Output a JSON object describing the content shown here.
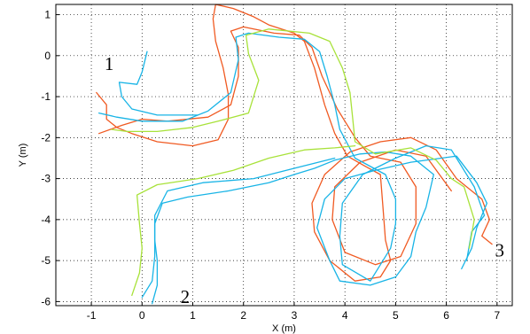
{
  "chart_data": {
    "type": "line",
    "title": "",
    "xlabel": "X (m)",
    "ylabel": "Y (m)",
    "xlim": [
      -1.7,
      7.3
    ],
    "ylim": [
      -6.1,
      1.25
    ],
    "xticks": [
      -1,
      0,
      1,
      2,
      3,
      4,
      5,
      6,
      7
    ],
    "yticks": [
      1,
      0,
      -1,
      -2,
      -3,
      -4,
      -5,
      -6
    ],
    "grid": true,
    "annotations": [
      {
        "text": "1",
        "x": -0.65,
        "y": -0.2
      },
      {
        "text": "2",
        "x": 0.85,
        "y": -5.88
      },
      {
        "text": "3",
        "x": 7.05,
        "y": -4.75
      }
    ],
    "series": [
      {
        "color": "#f05a22",
        "points": [
          [
            -0.9,
            -0.9
          ],
          [
            -0.7,
            -1.2
          ],
          [
            -0.7,
            -1.55
          ],
          [
            -0.5,
            -1.75
          ],
          [
            -0.2,
            -1.9
          ],
          [
            0.3,
            -2.1
          ],
          [
            1.0,
            -2.2
          ],
          [
            1.5,
            -2.05
          ],
          [
            1.7,
            -1.55
          ],
          [
            1.7,
            -0.95
          ],
          [
            1.6,
            -0.3
          ],
          [
            1.45,
            0.35
          ],
          [
            1.4,
            0.9
          ],
          [
            1.45,
            1.25
          ],
          [
            1.8,
            1.15
          ],
          [
            2.2,
            0.95
          ],
          [
            2.5,
            0.75
          ],
          [
            3.0,
            0.55
          ],
          [
            3.2,
            0.35
          ],
          [
            3.4,
            -0.3
          ],
          [
            3.6,
            -1.2
          ],
          [
            3.8,
            -1.9
          ],
          [
            4.05,
            -2.45
          ],
          [
            4.4,
            -2.7
          ],
          [
            4.7,
            -2.9
          ],
          [
            4.75,
            -3.7
          ],
          [
            4.8,
            -4.5
          ],
          [
            4.9,
            -5.0
          ],
          [
            4.7,
            -5.4
          ],
          [
            4.2,
            -5.5
          ],
          [
            3.7,
            -5.0
          ],
          [
            3.4,
            -4.3
          ],
          [
            3.35,
            -3.6
          ],
          [
            3.6,
            -2.9
          ],
          [
            4.1,
            -2.35
          ],
          [
            4.7,
            -2.1
          ],
          [
            5.3,
            -2.0
          ],
          [
            5.8,
            -2.3
          ],
          [
            6.2,
            -3.0
          ],
          [
            6.7,
            -3.5
          ],
          [
            6.85,
            -4.0
          ],
          [
            6.7,
            -4.4
          ],
          [
            6.9,
            -4.6
          ]
        ]
      },
      {
        "color": "#f05a22",
        "points": [
          [
            -0.85,
            -1.9
          ],
          [
            -0.4,
            -1.7
          ],
          [
            0.0,
            -1.55
          ],
          [
            0.5,
            -1.6
          ],
          [
            1.3,
            -1.5
          ],
          [
            1.75,
            -1.2
          ],
          [
            1.9,
            -0.5
          ],
          [
            1.9,
            0.2
          ],
          [
            1.75,
            0.6
          ],
          [
            2.0,
            0.7
          ],
          [
            2.6,
            0.55
          ],
          [
            3.1,
            0.5
          ],
          [
            3.35,
            0.2
          ],
          [
            3.55,
            -0.5
          ],
          [
            3.85,
            -1.3
          ],
          [
            4.2,
            -2.0
          ],
          [
            4.5,
            -2.45
          ],
          [
            5.1,
            -2.6
          ],
          [
            5.4,
            -3.2
          ],
          [
            5.4,
            -4.1
          ],
          [
            5.1,
            -4.9
          ],
          [
            4.6,
            -5.1
          ],
          [
            4.0,
            -4.8
          ],
          [
            3.75,
            -4.0
          ],
          [
            3.8,
            -3.2
          ],
          [
            4.3,
            -2.6
          ],
          [
            5.0,
            -2.3
          ],
          [
            5.6,
            -2.45
          ],
          [
            6.1,
            -3.3
          ]
        ]
      },
      {
        "color": "#18b4e6",
        "points": [
          [
            -0.85,
            -1.4
          ],
          [
            -0.5,
            -1.5
          ],
          [
            0.0,
            -1.6
          ],
          [
            0.8,
            -1.6
          ],
          [
            1.3,
            -1.35
          ],
          [
            1.75,
            -0.9
          ],
          [
            1.9,
            -0.1
          ],
          [
            1.85,
            0.45
          ],
          [
            2.1,
            0.55
          ],
          [
            2.7,
            0.45
          ],
          [
            3.2,
            0.4
          ],
          [
            3.5,
            0.1
          ],
          [
            3.65,
            -0.5
          ],
          [
            3.8,
            -1.2
          ],
          [
            3.9,
            -1.8
          ],
          [
            4.2,
            -2.5
          ],
          [
            4.8,
            -2.9
          ],
          [
            5.0,
            -3.5
          ],
          [
            5.0,
            -4.1
          ],
          [
            4.9,
            -4.7
          ],
          [
            4.5,
            -5.5
          ],
          [
            3.95,
            -5.1
          ],
          [
            3.9,
            -4.4
          ],
          [
            3.95,
            -3.6
          ],
          [
            4.35,
            -2.9
          ],
          [
            5.0,
            -2.5
          ],
          [
            5.6,
            -2.2
          ],
          [
            6.1,
            -2.3
          ],
          [
            6.55,
            -3.2
          ],
          [
            6.75,
            -3.9
          ],
          [
            6.5,
            -4.3
          ],
          [
            6.4,
            -5.0
          ]
        ]
      },
      {
        "color": "#18b4e6",
        "points": [
          [
            0.0,
            -5.9
          ],
          [
            0.2,
            -5.5
          ],
          [
            0.25,
            -4.9
          ],
          [
            0.25,
            -4.1
          ],
          [
            0.4,
            -3.6
          ],
          [
            0.9,
            -3.45
          ],
          [
            1.7,
            -3.3
          ],
          [
            2.5,
            -3.1
          ],
          [
            3.0,
            -2.9
          ],
          [
            3.4,
            -2.75
          ],
          [
            3.8,
            -2.55
          ],
          [
            4.3,
            -2.4
          ],
          [
            4.8,
            -2.35
          ],
          [
            5.3,
            -2.45
          ],
          [
            5.75,
            -2.9
          ],
          [
            5.6,
            -3.7
          ],
          [
            5.4,
            -4.3
          ],
          [
            5.3,
            -4.9
          ],
          [
            5.0,
            -5.4
          ],
          [
            4.5,
            -5.6
          ],
          [
            3.9,
            -5.5
          ],
          [
            3.7,
            -5.0
          ],
          [
            3.45,
            -4.2
          ],
          [
            3.6,
            -3.5
          ],
          [
            4.0,
            -3.0
          ],
          [
            4.6,
            -2.8
          ],
          [
            5.3,
            -2.6
          ],
          [
            6.2,
            -2.45
          ],
          [
            6.6,
            -3.1
          ],
          [
            6.8,
            -3.6
          ],
          [
            6.6,
            -4.2
          ],
          [
            6.5,
            -4.7
          ],
          [
            6.3,
            -5.2
          ]
        ]
      },
      {
        "color": "#18b4e6",
        "points": [
          [
            0.1,
            0.1
          ],
          [
            0.0,
            -0.4
          ],
          [
            -0.1,
            -0.7
          ],
          [
            -0.45,
            -0.65
          ],
          [
            -0.4,
            -1.0
          ],
          [
            -0.2,
            -1.3
          ],
          [
            0.3,
            -1.45
          ],
          [
            1.1,
            -1.45
          ]
        ]
      },
      {
        "color": "#18b4e6",
        "points": [
          [
            0.2,
            -6.05
          ],
          [
            0.3,
            -5.6
          ],
          [
            0.3,
            -5.0
          ],
          [
            0.25,
            -4.5
          ],
          [
            0.25,
            -3.9
          ],
          [
            0.5,
            -3.3
          ],
          [
            1.2,
            -3.1
          ],
          [
            2.2,
            -3.0
          ],
          [
            3.0,
            -2.75
          ],
          [
            3.8,
            -2.5
          ]
        ]
      },
      {
        "color": "#a8e23a",
        "points": [
          [
            -0.6,
            -1.8
          ],
          [
            -0.3,
            -1.85
          ],
          [
            0.3,
            -1.85
          ],
          [
            1.0,
            -1.75
          ],
          [
            1.5,
            -1.6
          ],
          [
            2.1,
            -1.4
          ],
          [
            2.3,
            -0.6
          ],
          [
            2.1,
            0.05
          ],
          [
            2.05,
            0.5
          ],
          [
            2.5,
            0.65
          ],
          [
            3.3,
            0.55
          ],
          [
            3.7,
            0.35
          ],
          [
            3.95,
            -0.3
          ],
          [
            4.1,
            -0.9
          ],
          [
            4.15,
            -1.5
          ],
          [
            4.2,
            -2.1
          ],
          [
            4.6,
            -2.4
          ],
          [
            5.3,
            -2.25
          ],
          [
            5.8,
            -2.55
          ],
          [
            6.1,
            -3.0
          ],
          [
            6.35,
            -3.2
          ],
          [
            6.55,
            -4.0
          ],
          [
            6.45,
            -4.7
          ]
        ]
      },
      {
        "color": "#a8e23a",
        "points": [
          [
            -0.2,
            -5.85
          ],
          [
            -0.05,
            -5.3
          ],
          [
            0.0,
            -4.7
          ],
          [
            -0.05,
            -4.1
          ],
          [
            -0.1,
            -3.4
          ],
          [
            0.3,
            -3.15
          ],
          [
            1.1,
            -3.0
          ],
          [
            1.8,
            -2.8
          ],
          [
            2.5,
            -2.5
          ],
          [
            3.2,
            -2.3
          ],
          [
            3.8,
            -2.25
          ],
          [
            4.2,
            -2.2
          ]
        ]
      }
    ]
  }
}
